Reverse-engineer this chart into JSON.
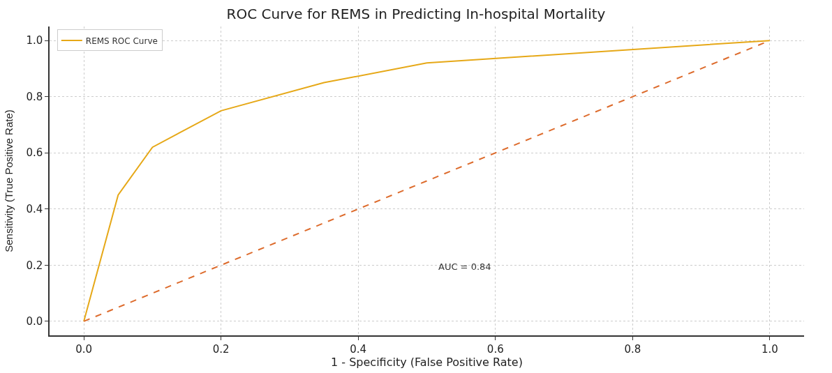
{
  "chart_data": {
    "type": "line",
    "title": "ROC Curve for REMS in Predicting In-hospital Mortality",
    "xlabel": "1 - Specificity (False Positive Rate)",
    "ylabel": "Sensitivity (True Positive Rate)",
    "series": [
      {
        "name": "REMS ROC Curve",
        "color": "#e6a817",
        "x": [
          0,
          0.05,
          0.1,
          0.2,
          0.35,
          0.5,
          1
        ],
        "values": [
          0,
          0.45,
          0.62,
          0.75,
          0.85,
          0.92,
          1
        ],
        "line_style": "solid"
      },
      {
        "color": "#dd6b2c",
        "x": [
          0,
          1
        ],
        "values": [
          0,
          1
        ],
        "line_style": "dashed"
      }
    ],
    "annotations": [
      "AUC = 0.84"
    ],
    "xlim": [
      -0.05,
      1.05
    ],
    "ylim": [
      -0.05,
      1.05
    ],
    "xticks": [
      {
        "value": 0,
        "label": "0.0"
      },
      0.2,
      0.4,
      0.6,
      0.8,
      {
        "value": 1,
        "label": "1.0"
      }
    ],
    "yticks": [
      {
        "value": 0,
        "label": "0.0"
      },
      0.2,
      0.4,
      0.6,
      0.8,
      {
        "value": 1,
        "label": "1.0"
      }
    ],
    "grid": true,
    "legend": "top left"
  }
}
